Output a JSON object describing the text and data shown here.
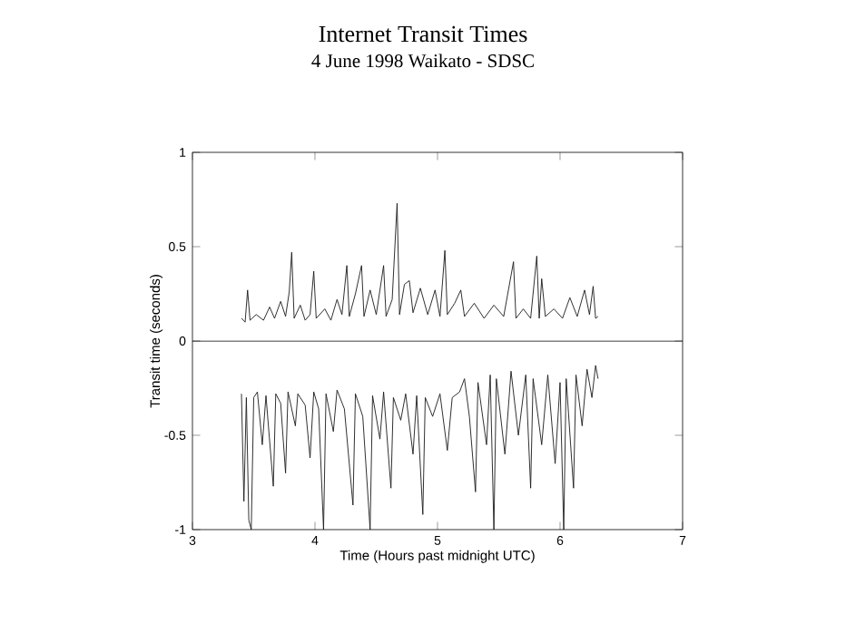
{
  "chart_data": {
    "type": "line",
    "title": "Internet Transit Times",
    "subtitle": "4 June 1998 Waikato - SDSC",
    "xlabel": "Time (Hours past midnight UTC)",
    "ylabel": "Transit time (seconds)",
    "xlim": [
      3,
      7
    ],
    "ylim": [
      -1,
      1
    ],
    "xticks": [
      3,
      4,
      5,
      6,
      7
    ],
    "yticks": [
      -1,
      -0.5,
      0,
      0.5,
      1
    ],
    "grid": false,
    "marker": "none",
    "line_style": "solid",
    "ref_lines": [
      {
        "axis": "y",
        "value": 0,
        "color": "#000000"
      }
    ],
    "series": [
      {
        "color": "#1a1a1a",
        "x": [
          3.4,
          3.43,
          3.45,
          3.47,
          3.52,
          3.58,
          3.63,
          3.67,
          3.72,
          3.76,
          3.79,
          3.81,
          3.83,
          3.88,
          3.92,
          3.96,
          3.99,
          4.01,
          4.08,
          4.13,
          4.18,
          4.22,
          4.26,
          4.28,
          4.33,
          4.38,
          4.4,
          4.45,
          4.5,
          4.56,
          4.58,
          4.63,
          4.67,
          4.69,
          4.73,
          4.77,
          4.8,
          4.86,
          4.92,
          4.98,
          5.02,
          5.06,
          5.08,
          5.14,
          5.19,
          5.22,
          5.3,
          5.38,
          5.46,
          5.54,
          5.62,
          5.64,
          5.7,
          5.76,
          5.81,
          5.83,
          5.85,
          5.88,
          5.95,
          6.02,
          6.08,
          6.14,
          6.2,
          6.24,
          6.27,
          6.29,
          6.31
        ],
        "values": [
          0.12,
          0.1,
          0.27,
          0.11,
          0.14,
          0.11,
          0.18,
          0.12,
          0.21,
          0.13,
          0.26,
          0.47,
          0.12,
          0.19,
          0.11,
          0.14,
          0.37,
          0.12,
          0.17,
          0.11,
          0.22,
          0.14,
          0.4,
          0.13,
          0.25,
          0.4,
          0.13,
          0.27,
          0.14,
          0.4,
          0.13,
          0.22,
          0.73,
          0.14,
          0.3,
          0.32,
          0.15,
          0.28,
          0.14,
          0.27,
          0.13,
          0.48,
          0.14,
          0.2,
          0.27,
          0.13,
          0.2,
          0.12,
          0.19,
          0.13,
          0.42,
          0.12,
          0.17,
          0.12,
          0.45,
          0.12,
          0.33,
          0.13,
          0.17,
          0.12,
          0.23,
          0.13,
          0.27,
          0.14,
          0.29,
          0.12,
          0.13
        ]
      },
      {
        "color": "#1a1a1a",
        "x": [
          3.4,
          3.42,
          3.44,
          3.46,
          3.48,
          3.5,
          3.53,
          3.57,
          3.6,
          3.66,
          3.68,
          3.72,
          3.76,
          3.78,
          3.84,
          3.86,
          3.92,
          3.96,
          3.99,
          4.03,
          4.07,
          4.09,
          4.15,
          4.18,
          4.24,
          4.31,
          4.33,
          4.39,
          4.45,
          4.47,
          4.53,
          4.56,
          4.62,
          4.64,
          4.7,
          4.74,
          4.8,
          4.83,
          4.88,
          4.9,
          4.96,
          5.02,
          5.08,
          5.12,
          5.18,
          5.22,
          5.26,
          5.31,
          5.33,
          5.4,
          5.43,
          5.46,
          5.48,
          5.55,
          5.6,
          5.66,
          5.72,
          5.76,
          5.78,
          5.85,
          5.9,
          5.96,
          6.0,
          6.03,
          6.05,
          6.11,
          6.13,
          6.18,
          6.22,
          6.26,
          6.29,
          6.31
        ],
        "values": [
          -0.28,
          -0.85,
          -0.3,
          -0.95,
          -1.0,
          -0.3,
          -0.27,
          -0.55,
          -0.29,
          -0.77,
          -0.28,
          -0.33,
          -0.7,
          -0.27,
          -0.45,
          -0.28,
          -0.34,
          -0.62,
          -0.27,
          -0.36,
          -1.0,
          -0.28,
          -0.48,
          -0.26,
          -0.36,
          -0.87,
          -0.28,
          -0.4,
          -1.0,
          -0.29,
          -0.52,
          -0.27,
          -0.78,
          -0.3,
          -0.42,
          -0.28,
          -0.6,
          -0.29,
          -0.92,
          -0.3,
          -0.4,
          -0.28,
          -0.58,
          -0.3,
          -0.27,
          -0.2,
          -0.4,
          -0.8,
          -0.22,
          -0.55,
          -0.18,
          -1.0,
          -0.2,
          -0.6,
          -0.16,
          -0.5,
          -0.18,
          -0.78,
          -0.2,
          -0.55,
          -0.18,
          -0.65,
          -0.22,
          -1.0,
          -0.2,
          -0.78,
          -0.18,
          -0.45,
          -0.15,
          -0.3,
          -0.13,
          -0.2
        ]
      }
    ]
  }
}
